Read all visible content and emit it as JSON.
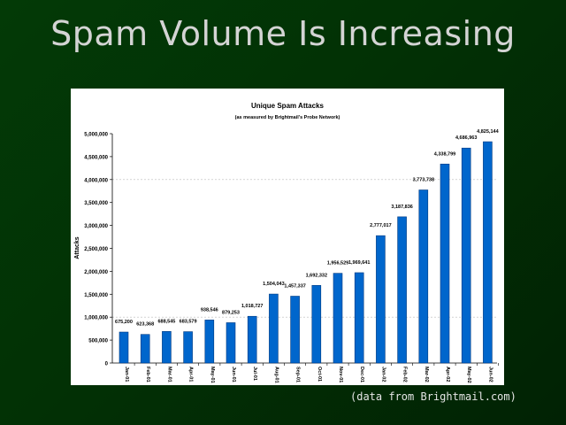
{
  "slide": {
    "title": "Spam Volume Is Increasing",
    "footer": "(data from Brightmail.com)"
  },
  "chart_data": {
    "type": "bar",
    "title": "Unique Spam Attacks",
    "subtitle": "(as measured by Brightmail's Probe Network)",
    "xlabel": "",
    "ylabel": "Attacks",
    "ylim": [
      0,
      5000000
    ],
    "yticks": [
      0,
      500000,
      1000000,
      1500000,
      2000000,
      2500000,
      3000000,
      3500000,
      4000000,
      4500000,
      5000000
    ],
    "ytick_labels": [
      "0",
      "500,000",
      "1,000,000",
      "1,500,000",
      "2,000,000",
      "2,500,000",
      "3,000,000",
      "3,500,000",
      "4,000,000",
      "4,500,000",
      "5,000,000"
    ],
    "gridlines": [
      1000000,
      4000000
    ],
    "bar_color": "#0066cc",
    "categories": [
      "Jan-01",
      "Feb-01",
      "Mar-01",
      "Apr-01",
      "May-01",
      "Jun-01",
      "Jul-01",
      "Aug-01",
      "Sep-01",
      "Oct-01",
      "Nov-01",
      "Dec-01",
      "Jan-02",
      "Feb-02",
      "Mar-02",
      "Apr-02",
      "May-02",
      "Jun-02"
    ],
    "values": [
      675200,
      623368,
      688545,
      683579,
      938546,
      879253,
      1018727,
      1504043,
      1457337,
      1692332,
      1956529,
      1969641,
      2777017,
      3187836,
      3773738,
      4338799,
      4686963,
      4825144
    ],
    "value_labels": [
      "675,200",
      "623,368",
      "688,545",
      "683,579",
      "938,546",
      "879,253",
      "1,018,727",
      "1,504,043",
      "1,457,337",
      "1,692,332",
      "1,956,529",
      "1,969,641",
      "2,777,017",
      "3,187,836",
      "3,773,738",
      "4,338,799",
      "4,686,963",
      "4,825,144"
    ]
  }
}
